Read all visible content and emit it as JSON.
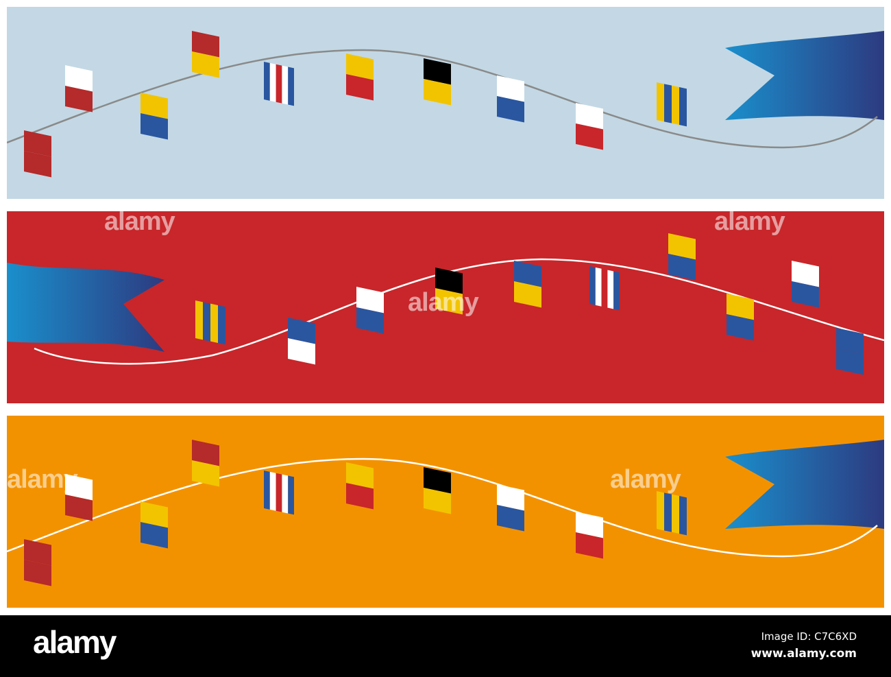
{
  "banners": [
    {
      "background": "#c3d8e4",
      "line_color": "#8a8a8a",
      "orientation": "pennant-right"
    },
    {
      "background": "#c8262a",
      "line_color": "#ffffff",
      "orientation": "pennant-left",
      "watermarks": [
        "alamy",
        "alamy",
        "alamy"
      ]
    },
    {
      "background": "#f39200",
      "line_color": "#ffffff",
      "orientation": "pennant-right",
      "watermarks": [
        "alamy",
        "alamy"
      ]
    }
  ],
  "pennant_gradient": [
    "#1a8fcc",
    "#2d3a80"
  ],
  "footer": {
    "logo": "alamy",
    "image_id": "Image ID: C7C6XD",
    "site": "www.alamy.com"
  }
}
